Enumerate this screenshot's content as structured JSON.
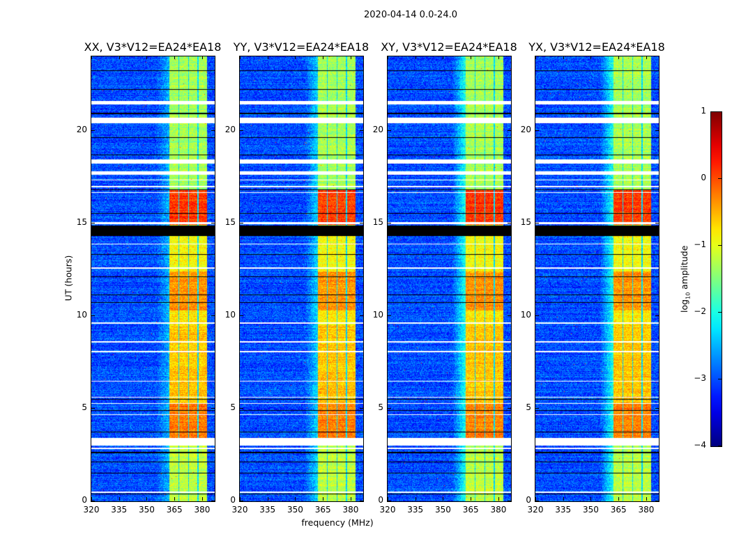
{
  "figure_title": "2020-04-14 0.0-24.0",
  "chart_data": {
    "type": "heatmap",
    "title": "2020-04-14 0.0-24.0",
    "xlabel": "frequency (MHz)",
    "ylabel": "UT (hours)",
    "xlim": [
      320,
      386.8
    ],
    "ylim": [
      0,
      24
    ],
    "xticks": [
      "320",
      "335",
      "350",
      "365",
      "380"
    ],
    "xtick_values": [
      320,
      335,
      350,
      365,
      380
    ],
    "yticks": [
      "0",
      "5",
      "10",
      "15",
      "20"
    ],
    "ytick_values": [
      0,
      5,
      10,
      15,
      20
    ],
    "colormap": "jet",
    "clim": [
      -4,
      1
    ],
    "colorbar": {
      "label_prefix": "log",
      "label_sub": "10",
      "label_suffix": " amplitude",
      "ticks": [
        "1",
        "0",
        "−1",
        "−2",
        "−3",
        "−4"
      ],
      "tick_values": [
        1,
        0,
        -1,
        -2,
        -3,
        -4
      ]
    },
    "panels": [
      {
        "title": "XX, V3*V12=EA24*EA18",
        "seed": 11,
        "haze": 0.5
      },
      {
        "title": "YY, V3*V12=EA24*EA18",
        "seed": 23,
        "haze": 0.7
      },
      {
        "title": "XY, V3*V12=EA24*EA18",
        "seed": 37,
        "haze": 1.0
      },
      {
        "title": "YX, V3*V12=EA24*EA18",
        "seed": 51,
        "haze": 1.0
      }
    ],
    "background_level": -3.0,
    "subbands_mhz": [
      [
        362.3,
        367.0
      ],
      [
        367.6,
        372.3
      ],
      [
        372.9,
        377.4
      ],
      [
        378.0,
        382.6
      ]
    ],
    "band_level_by_hour": [
      {
        "from": 0,
        "to": 2.6,
        "level": -1.2
      },
      {
        "from": 3.4,
        "to": 5.3,
        "level": -0.25
      },
      {
        "from": 5.3,
        "to": 9.5,
        "level": -0.6
      },
      {
        "from": 9.5,
        "to": 10.3,
        "level": -0.8
      },
      {
        "from": 10.3,
        "to": 12.4,
        "level": -0.35
      },
      {
        "from": 12.4,
        "to": 14.3,
        "level": -0.9
      },
      {
        "from": 14.9,
        "to": 16.8,
        "level": 0.1
      },
      {
        "from": 16.8,
        "to": 24,
        "level": -1.3
      }
    ],
    "flagged_white_hours": [
      [
        21.4,
        21.6
      ],
      [
        20.4,
        20.7
      ],
      [
        18.2,
        18.45
      ],
      [
        17.6,
        17.8
      ],
      [
        17.3,
        17.36
      ],
      [
        16.95,
        17.0
      ],
      [
        16.62,
        16.68
      ],
      [
        14.95,
        15.05
      ],
      [
        13.85,
        13.9
      ],
      [
        12.55,
        12.62
      ],
      [
        9.58,
        9.64
      ],
      [
        8.55,
        8.62
      ],
      [
        8.05,
        8.1
      ],
      [
        6.45,
        6.5
      ],
      [
        5.6,
        5.65
      ],
      [
        5.25,
        5.3
      ],
      [
        4.65,
        4.7
      ],
      [
        3.0,
        3.4
      ],
      [
        2.83,
        2.88
      ],
      [
        0.45,
        0.52
      ]
    ],
    "flagged_black_hours": [
      [
        23.2,
        23.25
      ],
      [
        22.2,
        22.24
      ],
      [
        20.9,
        20.95
      ],
      [
        19.6,
        19.64
      ],
      [
        18.65,
        18.7
      ],
      [
        16.8,
        16.84
      ],
      [
        15.5,
        15.55
      ],
      [
        14.3,
        14.88
      ],
      [
        13.3,
        13.34
      ],
      [
        12.1,
        12.14
      ],
      [
        11.1,
        11.14
      ],
      [
        10.7,
        10.74
      ],
      [
        5.48,
        5.52
      ],
      [
        4.88,
        4.92
      ],
      [
        3.72,
        3.76
      ],
      [
        2.6,
        2.65
      ],
      [
        2.1,
        2.14
      ],
      [
        1.5,
        1.54
      ],
      [
        0.36,
        0.4
      ]
    ]
  }
}
